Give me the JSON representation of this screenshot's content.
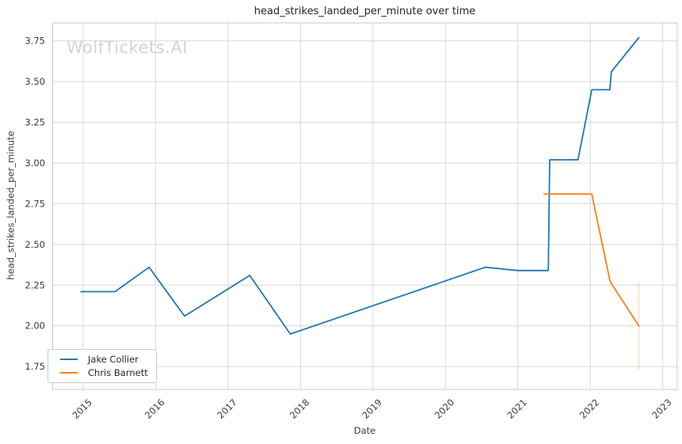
{
  "watermark": "WolfTickets.AI",
  "chart_data": {
    "type": "line",
    "title": "head_strikes_landed_per_minute over time",
    "xlabel": "Date",
    "ylabel": "head_strikes_landed_per_minute",
    "xlim": [
      2014.58,
      2023.2
    ],
    "ylim": [
      1.61,
      3.86
    ],
    "x_ticks": [
      2015,
      2016,
      2017,
      2018,
      2019,
      2020,
      2021,
      2022,
      2023
    ],
    "y_ticks": [
      1.75,
      2.0,
      2.25,
      2.5,
      2.75,
      3.0,
      3.25,
      3.5,
      3.75
    ],
    "grid": true,
    "legend_position": "lower left",
    "colors": {
      "grid": "#d9d9d9",
      "spine": "#c9c9c9",
      "tick_text": "#3b3b3b",
      "title_text": "#262626",
      "watermark": "#d4d4d4"
    },
    "series": [
      {
        "name": "Jake Collier",
        "color": "#1f77b4",
        "points": [
          [
            2014.97,
            2.21
          ],
          [
            2015.44,
            2.21
          ],
          [
            2015.91,
            2.36
          ],
          [
            2016.4,
            2.06
          ],
          [
            2017.3,
            2.31
          ],
          [
            2017.86,
            1.95
          ],
          [
            2020.55,
            2.36
          ],
          [
            2021.0,
            2.34
          ],
          [
            2021.42,
            2.34
          ],
          [
            2021.44,
            3.02
          ],
          [
            2021.83,
            3.02
          ],
          [
            2022.02,
            3.45
          ],
          [
            2022.27,
            3.45
          ],
          [
            2022.29,
            3.56
          ],
          [
            2022.67,
            3.77
          ]
        ]
      },
      {
        "name": "Chris Barnett",
        "color": "#ff7f0e",
        "points": [
          [
            2021.36,
            2.81
          ],
          [
            2022.02,
            2.81
          ],
          [
            2022.27,
            2.28
          ],
          [
            2022.29,
            2.26
          ],
          [
            2022.67,
            2.0
          ]
        ],
        "error_bar": {
          "x": 2022.67,
          "y_from": 1.73,
          "y_to": 2.27
        }
      }
    ]
  }
}
